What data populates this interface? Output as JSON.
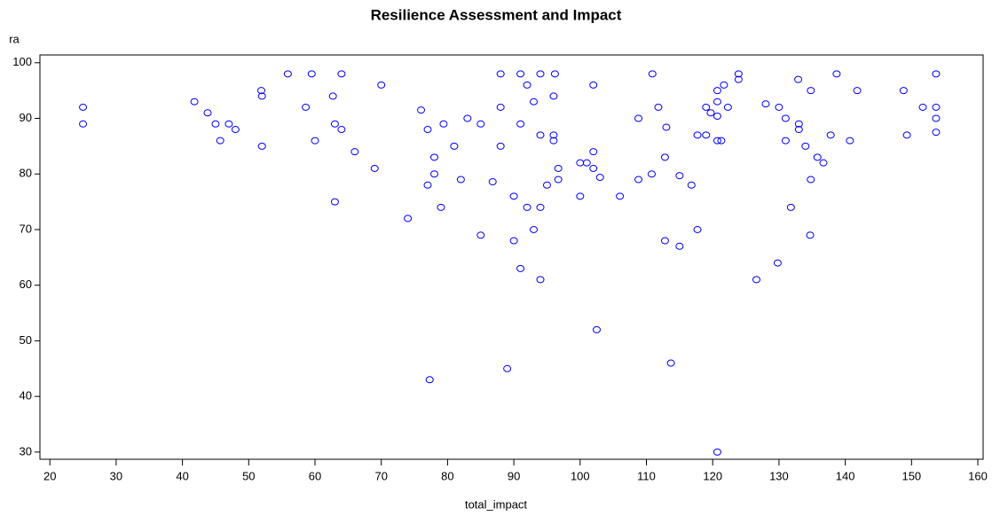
{
  "chart_data": {
    "type": "scatter",
    "title": "Resilience Assessment and Impact",
    "x_label": "total_impact",
    "y_label": "ra",
    "color": "#0000ff",
    "xlim": [
      18.5,
      160.8
    ],
    "ylim": [
      28.7,
      101.4
    ],
    "xticks": [
      20,
      30,
      40,
      50,
      60,
      70,
      80,
      90,
      100,
      110,
      120,
      130,
      140,
      150,
      160
    ],
    "yticks": [
      30,
      40,
      50,
      60,
      70,
      80,
      90,
      100
    ],
    "x": [
      25,
      25,
      41.8,
      43.8,
      45,
      45.7,
      47,
      48,
      51.9,
      52,
      52,
      55.9,
      58.6,
      59.5,
      60,
      62.7,
      63,
      63,
      64,
      64,
      66,
      69,
      70,
      74,
      76,
      77,
      77,
      77.3,
      78,
      78,
      79,
      79.4,
      81,
      82,
      83,
      85,
      85,
      86.8,
      88,
      88,
      88,
      89,
      90,
      90,
      91,
      91,
      91,
      92,
      92,
      93,
      93,
      94,
      94,
      94,
      94,
      95,
      96,
      96,
      96,
      96.2,
      96.7,
      96.7,
      100,
      100,
      101,
      102,
      102,
      102,
      102.5,
      103,
      106,
      108.8,
      108.8,
      110.8,
      110.9,
      111.8,
      112.8,
      112.8,
      113,
      113.7,
      115,
      115,
      116.8,
      117.7,
      117.7,
      119,
      119,
      119.7,
      120.7,
      120.7,
      120.7,
      120.7,
      121.3,
      120.7,
      121.7,
      122.3,
      123.9,
      123.9,
      126.6,
      128,
      129.8,
      130,
      131,
      131,
      131.8,
      132.9,
      133,
      133,
      134,
      134.7,
      134.8,
      134.8,
      135.8,
      136.7,
      137.8,
      138.7,
      140.7,
      141.8,
      148.8,
      149.3,
      151.7,
      153.7,
      153.7,
      153.7,
      153.7
    ],
    "y": [
      92,
      89,
      93,
      91,
      89,
      86,
      89,
      88,
      95,
      94,
      85,
      98,
      92,
      98,
      86,
      94,
      89,
      75,
      98,
      88,
      84,
      81,
      96,
      72,
      91.5,
      88,
      78,
      43,
      83,
      80,
      74,
      89,
      85,
      79,
      90,
      89,
      69,
      78.6,
      98,
      92,
      85,
      45,
      76,
      68,
      89,
      63,
      98,
      96,
      74,
      93,
      70,
      98,
      87,
      74,
      61,
      78,
      94,
      87,
      86,
      98,
      81,
      79,
      82,
      76,
      82,
      96,
      84,
      81,
      52,
      79.4,
      76,
      90,
      79,
      80,
      98,
      92,
      68,
      83,
      88.4,
      46,
      67,
      79.7,
      78,
      87,
      70,
      87,
      92,
      91,
      95,
      93,
      90.4,
      86,
      86,
      30,
      96,
      92,
      98,
      97,
      61,
      92.6,
      64,
      92,
      90,
      86,
      74,
      97,
      89,
      88,
      85,
      69,
      79,
      95,
      83,
      82,
      87,
      98,
      86,
      95,
      95,
      87,
      92,
      98,
      92,
      90,
      87.5
    ]
  }
}
